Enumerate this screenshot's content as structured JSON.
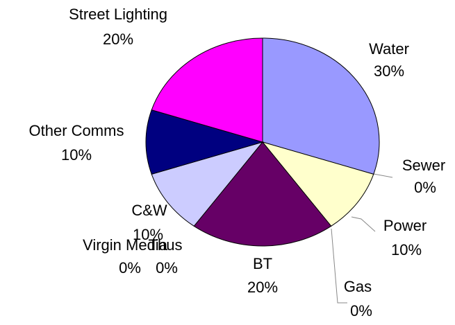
{
  "chart_data": {
    "type": "pie",
    "categories": [
      "Water",
      "Sewer",
      "Power",
      "Gas",
      "BT",
      "Virgin Media",
      "Thus",
      "C&W",
      "Other Comms",
      "Street Lighting"
    ],
    "values": [
      30,
      0,
      10,
      0,
      20,
      0,
      0,
      10,
      10,
      20
    ],
    "value_labels": [
      "30%",
      "0%",
      "10%",
      "0%",
      "20%",
      "0%",
      "0%",
      "10%",
      "10%",
      "20%"
    ],
    "colors": [
      "#9999ff",
      "#993366",
      "#ffffcc",
      "#ccffff",
      "#660066",
      "#ff8080",
      "#0066cc",
      "#ccccff",
      "#000080",
      "#ff00ff"
    ]
  }
}
